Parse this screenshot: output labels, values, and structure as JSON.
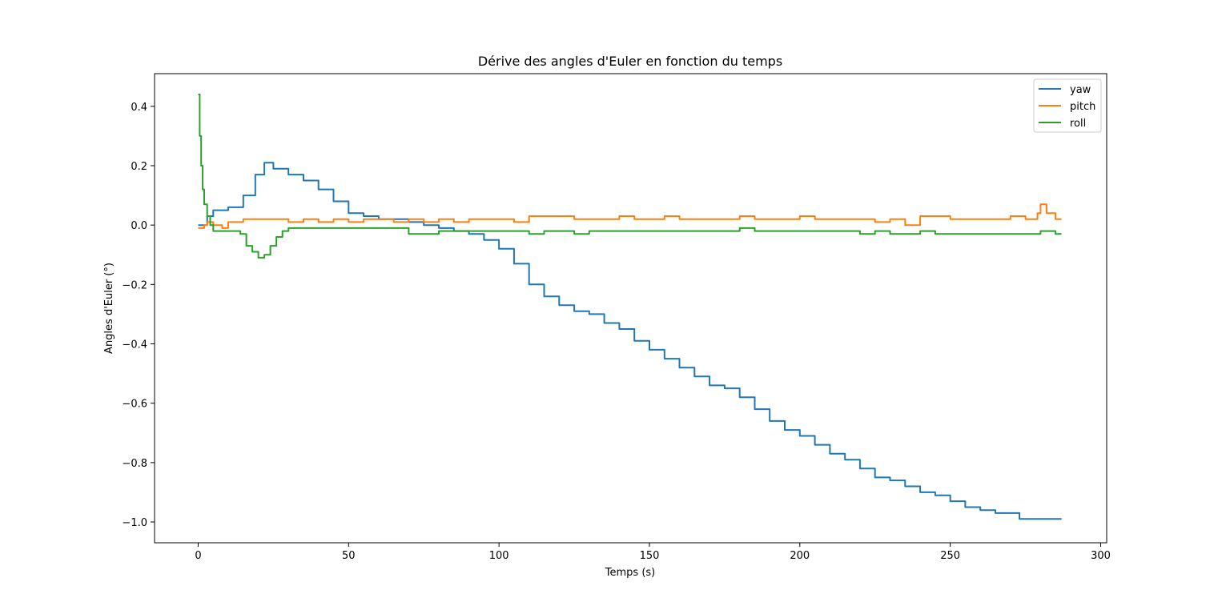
{
  "chart_data": {
    "type": "line",
    "title": "Dérive des angles d'Euler en fonction du temps",
    "xlabel": "Temps (s)",
    "ylabel": "Angles d'Euler (°)",
    "xlim": [
      -14.5,
      302
    ],
    "ylim": [
      -1.07,
      0.51
    ],
    "xticks": [
      0,
      50,
      100,
      150,
      200,
      250,
      300
    ],
    "yticks": [
      0.4,
      0.2,
      0.0,
      -0.2,
      -0.4,
      -0.6,
      -0.8,
      -1.0
    ],
    "ytick_labels": [
      "0.4",
      "0.2",
      "0.0",
      "−0.2",
      "−0.4",
      "−0.6",
      "−0.8",
      "−1.0"
    ],
    "grid": false,
    "legend_position": "top-right",
    "series": [
      {
        "name": "yaw",
        "color": "#1f77b4",
        "x": [
          0,
          3,
          5,
          10,
          15,
          19,
          22,
          25,
          30,
          35,
          40,
          45,
          50,
          55,
          60,
          65,
          70,
          75,
          80,
          85,
          90,
          95,
          100,
          105,
          110,
          115,
          120,
          125,
          130,
          135,
          140,
          145,
          150,
          155,
          160,
          165,
          170,
          175,
          180,
          185,
          190,
          195,
          200,
          205,
          210,
          215,
          220,
          225,
          230,
          235,
          240,
          245,
          250,
          255,
          260,
          265,
          270,
          273,
          280,
          287
        ],
        "y": [
          0.0,
          0.03,
          0.05,
          0.06,
          0.1,
          0.17,
          0.21,
          0.19,
          0.17,
          0.15,
          0.12,
          0.08,
          0.04,
          0.03,
          0.02,
          0.02,
          0.01,
          0.0,
          -0.01,
          -0.02,
          -0.03,
          -0.05,
          -0.08,
          -0.13,
          -0.2,
          -0.24,
          -0.27,
          -0.29,
          -0.3,
          -0.33,
          -0.35,
          -0.39,
          -0.42,
          -0.45,
          -0.48,
          -0.51,
          -0.54,
          -0.55,
          -0.58,
          -0.62,
          -0.66,
          -0.69,
          -0.71,
          -0.74,
          -0.77,
          -0.79,
          -0.82,
          -0.85,
          -0.86,
          -0.88,
          -0.9,
          -0.91,
          -0.93,
          -0.95,
          -0.96,
          -0.97,
          -0.97,
          -0.99,
          -0.99,
          -0.99
        ]
      },
      {
        "name": "pitch",
        "color": "#ff7f0e",
        "x": [
          0,
          2,
          3,
          5,
          8,
          10,
          15,
          20,
          25,
          30,
          35,
          40,
          45,
          50,
          55,
          60,
          65,
          70,
          75,
          80,
          85,
          90,
          95,
          100,
          105,
          110,
          115,
          120,
          125,
          130,
          135,
          140,
          145,
          150,
          155,
          160,
          165,
          170,
          175,
          180,
          185,
          190,
          195,
          200,
          205,
          210,
          215,
          220,
          225,
          230,
          235,
          240,
          245,
          250,
          255,
          260,
          265,
          270,
          275,
          278,
          279,
          280,
          282,
          285,
          287
        ],
        "y": [
          -0.01,
          0.0,
          0.01,
          0.0,
          -0.01,
          0.01,
          0.02,
          0.02,
          0.02,
          0.01,
          0.02,
          0.01,
          0.02,
          0.01,
          0.02,
          0.02,
          0.01,
          0.02,
          0.01,
          0.02,
          0.01,
          0.02,
          0.02,
          0.02,
          0.01,
          0.03,
          0.03,
          0.03,
          0.02,
          0.02,
          0.02,
          0.03,
          0.02,
          0.02,
          0.03,
          0.02,
          0.02,
          0.02,
          0.02,
          0.03,
          0.02,
          0.02,
          0.02,
          0.03,
          0.02,
          0.02,
          0.02,
          0.02,
          0.01,
          0.02,
          0.0,
          0.03,
          0.03,
          0.02,
          0.02,
          0.02,
          0.02,
          0.03,
          0.02,
          0.02,
          0.04,
          0.07,
          0.04,
          0.02,
          0.02
        ]
      },
      {
        "name": "roll",
        "color": "#2ca02c",
        "x": [
          0,
          0.5,
          1,
          1.5,
          2,
          3,
          4,
          5,
          8,
          12,
          14,
          16,
          18,
          20,
          22,
          24,
          26,
          28,
          30,
          35,
          40,
          45,
          50,
          55,
          60,
          65,
          70,
          75,
          80,
          85,
          90,
          95,
          100,
          105,
          110,
          115,
          120,
          125,
          130,
          135,
          140,
          145,
          150,
          155,
          160,
          165,
          170,
          175,
          180,
          185,
          190,
          195,
          200,
          205,
          210,
          215,
          220,
          225,
          230,
          235,
          240,
          245,
          250,
          255,
          260,
          265,
          270,
          275,
          280,
          285,
          287
        ],
        "y": [
          0.44,
          0.3,
          0.2,
          0.12,
          0.07,
          0.03,
          0.0,
          -0.02,
          -0.02,
          -0.02,
          -0.03,
          -0.07,
          -0.09,
          -0.11,
          -0.1,
          -0.07,
          -0.04,
          -0.02,
          -0.01,
          -0.01,
          -0.01,
          -0.01,
          -0.01,
          -0.01,
          -0.01,
          -0.01,
          -0.03,
          -0.03,
          -0.02,
          -0.02,
          -0.02,
          -0.02,
          -0.02,
          -0.02,
          -0.03,
          -0.02,
          -0.02,
          -0.03,
          -0.02,
          -0.02,
          -0.02,
          -0.02,
          -0.02,
          -0.02,
          -0.02,
          -0.02,
          -0.02,
          -0.02,
          -0.01,
          -0.02,
          -0.02,
          -0.02,
          -0.02,
          -0.02,
          -0.02,
          -0.02,
          -0.03,
          -0.02,
          -0.03,
          -0.03,
          -0.02,
          -0.03,
          -0.03,
          -0.03,
          -0.03,
          -0.03,
          -0.03,
          -0.03,
          -0.02,
          -0.03,
          -0.03
        ]
      }
    ]
  }
}
